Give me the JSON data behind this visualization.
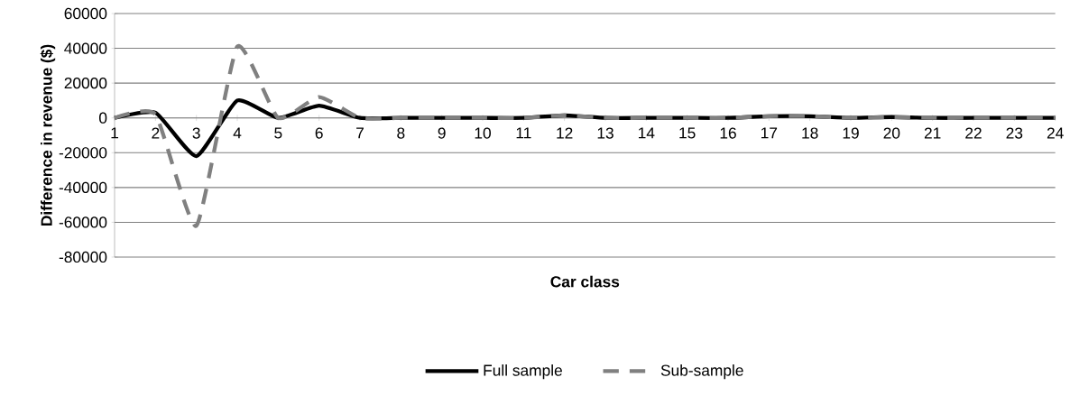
{
  "chart_data": {
    "type": "line",
    "xlabel": "Car class",
    "ylabel": "Difference in revenue ($)",
    "categories": [
      "1",
      "2",
      "3",
      "4",
      "5",
      "6",
      "7",
      "8",
      "9",
      "10",
      "11",
      "12",
      "13",
      "14",
      "15",
      "16",
      "17",
      "18",
      "19",
      "20",
      "21",
      "22",
      "23",
      "24"
    ],
    "series": [
      {
        "name": "Full sample",
        "color": "#000000",
        "line_style": "solid",
        "values": [
          0,
          3000,
          -22000,
          10000,
          0,
          7000,
          0,
          0,
          0,
          0,
          0,
          1500,
          0,
          0,
          0,
          0,
          1000,
          1000,
          0,
          500,
          0,
          0,
          0,
          0
        ]
      },
      {
        "name": "Sub-sample",
        "color": "#808080",
        "line_style": "dashed",
        "values": [
          0,
          2000,
          -62000,
          41000,
          0,
          12000,
          0,
          0,
          0,
          0,
          0,
          1500,
          0,
          0,
          0,
          0,
          1000,
          1000,
          0,
          500,
          0,
          0,
          0,
          0
        ]
      }
    ],
    "ylim": [
      -80000,
      60000
    ],
    "yticks": [
      -80000,
      -60000,
      -40000,
      -20000,
      0,
      20000,
      40000,
      60000
    ],
    "grid": "y",
    "legend": "bottom",
    "marker": "none"
  }
}
